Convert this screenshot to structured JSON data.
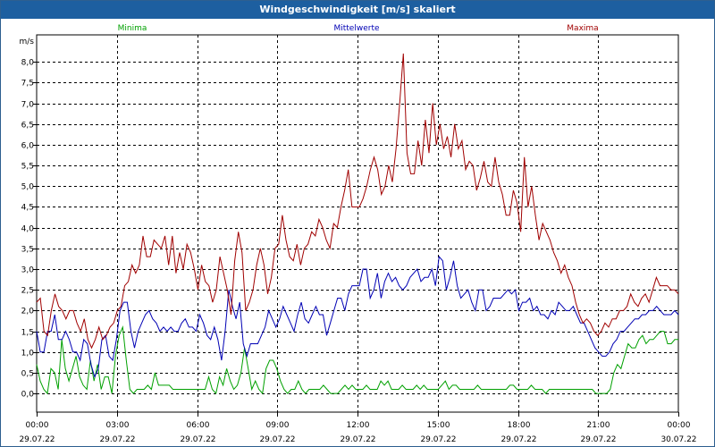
{
  "window": {
    "title": "Windgeschwindigkeit [m/s] skaliert"
  },
  "legend": [
    {
      "label": "Minima",
      "color": "#00a000"
    },
    {
      "label": "Mittelwerte",
      "color": "#0000b4"
    },
    {
      "label": "Maxima",
      "color": "#a00000"
    }
  ],
  "chart_data": {
    "type": "line",
    "title": "Windgeschwindigkeit [m/s] skaliert",
    "ylabel": "m/s",
    "xlabel": "",
    "ylim": [
      -0.45,
      8.65
    ],
    "yticks": [
      "0,0",
      "0,5",
      "1,0",
      "1,5",
      "2,0",
      "2,5",
      "3,0",
      "3,5",
      "4,0",
      "4,5",
      "5,0",
      "5,5",
      "6,0",
      "6,5",
      "7,0",
      "7,5",
      "8,0"
    ],
    "xticks": [
      {
        "time": "00:00",
        "date": "29.07.22"
      },
      {
        "time": "03:00",
        "date": "29.07.22"
      },
      {
        "time": "06:00",
        "date": "29.07.22"
      },
      {
        "time": "09:00",
        "date": "29.07.22"
      },
      {
        "time": "12:00",
        "date": "29.07.22"
      },
      {
        "time": "15:00",
        "date": "29.07.22"
      },
      {
        "time": "18:00",
        "date": "29.07.22"
      },
      {
        "time": "21:00",
        "date": "29.07.22"
      },
      {
        "time": "00:00",
        "date": "30.07.22"
      }
    ],
    "grid": true,
    "x_start": "29.07.22 00:00",
    "x_end": "30.07.22 00:00",
    "series": [
      {
        "name": "Minima",
        "color": "#00a000",
        "values": [
          0.7,
          0.3,
          0.1,
          0.0,
          0.6,
          0.5,
          0.1,
          1.3,
          0.6,
          0.3,
          0.6,
          0.9,
          0.4,
          0.2,
          0.1,
          0.8,
          0.3,
          0.7,
          0.1,
          0.4,
          0.4,
          0.0,
          0.9,
          1.4,
          1.6,
          0.8,
          0.1,
          0.0,
          0.1,
          0.1,
          0.1,
          0.2,
          0.1,
          0.5,
          0.2,
          0.2,
          0.2,
          0.2,
          0.1,
          0.1,
          0.1,
          0.1,
          0.1,
          0.1,
          0.1,
          0.1,
          0.1,
          0.1,
          0.4,
          0.1,
          0.0,
          0.4,
          0.2,
          0.6,
          0.3,
          0.1,
          0.2,
          0.5,
          1.1,
          0.6,
          0.1,
          0.3,
          0.1,
          0.0,
          0.6,
          0.8,
          0.8,
          0.6,
          0.3,
          0.1,
          0.0,
          0.1,
          0.1,
          0.3,
          0.1,
          0.0,
          0.1,
          0.1,
          0.1,
          0.1,
          0.2,
          0.1,
          0.0,
          0.0,
          0.0,
          0.1,
          0.2,
          0.1,
          0.2,
          0.1,
          0.1,
          0.1,
          0.2,
          0.1,
          0.1,
          0.1,
          0.3,
          0.2,
          0.3,
          0.1,
          0.1,
          0.1,
          0.2,
          0.1,
          0.1,
          0.1,
          0.2,
          0.1,
          0.2,
          0.1,
          0.1,
          0.1,
          0.1,
          0.2,
          0.3,
          0.1,
          0.2,
          0.2,
          0.1,
          0.1,
          0.1,
          0.1,
          0.1,
          0.2,
          0.1,
          0.1,
          0.1,
          0.1,
          0.1,
          0.1,
          0.1,
          0.1,
          0.2,
          0.2,
          0.1,
          0.1,
          0.1,
          0.1,
          0.2,
          0.1,
          0.1,
          0.1,
          0.0,
          0.1,
          0.1,
          0.1,
          0.1,
          0.1,
          0.1,
          0.1,
          0.1,
          0.1,
          0.1,
          0.1,
          0.1,
          0.1,
          0.0,
          0.0,
          0.0,
          0.0,
          0.1,
          0.5,
          0.7,
          0.6,
          0.9,
          1.2,
          1.1,
          1.1,
          1.3,
          1.4,
          1.2,
          1.3,
          1.3,
          1.4,
          1.5,
          1.5,
          1.2,
          1.2,
          1.3,
          1.3
        ]
      },
      {
        "name": "Mittelwerte",
        "color": "#0000b4",
        "values": [
          1.5,
          1.0,
          1.0,
          1.5,
          1.5,
          1.9,
          1.3,
          1.3,
          1.5,
          1.3,
          1.0,
          1.0,
          0.8,
          1.3,
          1.2,
          0.7,
          0.4,
          0.6,
          1.3,
          1.4,
          0.9,
          0.8,
          1.3,
          2.0,
          2.2,
          2.2,
          1.5,
          1.1,
          1.5,
          1.7,
          1.9,
          2.0,
          1.8,
          1.7,
          1.5,
          1.6,
          1.5,
          1.6,
          1.5,
          1.5,
          1.7,
          1.8,
          1.6,
          1.6,
          1.5,
          1.9,
          1.7,
          1.4,
          1.3,
          1.6,
          1.3,
          0.8,
          1.5,
          2.5,
          2.1,
          1.8,
          2.2,
          1.2,
          0.9,
          1.2,
          1.2,
          1.2,
          1.4,
          1.6,
          2.0,
          1.8,
          1.6,
          1.8,
          2.1,
          1.9,
          1.7,
          1.5,
          1.9,
          2.2,
          1.8,
          1.7,
          1.9,
          2.1,
          1.9,
          1.9,
          1.4,
          1.7,
          2.0,
          2.3,
          2.3,
          2.0,
          2.4,
          2.6,
          2.6,
          2.6,
          3.0,
          3.0,
          2.3,
          2.5,
          2.9,
          2.3,
          2.7,
          2.9,
          2.7,
          2.8,
          2.6,
          2.5,
          2.6,
          2.8,
          2.9,
          3.0,
          2.7,
          2.8,
          2.8,
          3.0,
          2.6,
          3.3,
          3.2,
          2.5,
          2.8,
          3.2,
          2.6,
          2.3,
          2.4,
          2.5,
          2.2,
          2.0,
          2.5,
          2.5,
          2.0,
          2.1,
          2.3,
          2.3,
          2.3,
          2.4,
          2.5,
          2.4,
          2.5,
          2.0,
          2.2,
          2.2,
          2.3,
          2.0,
          2.1,
          1.9,
          1.9,
          1.8,
          2.0,
          1.9,
          2.2,
          2.1,
          2.0,
          2.0,
          2.1,
          1.9,
          1.7,
          1.7,
          1.5,
          1.3,
          1.1,
          1.0,
          0.9,
          0.9,
          1.0,
          1.2,
          1.3,
          1.5,
          1.5,
          1.6,
          1.7,
          1.8,
          1.8,
          1.9,
          1.9,
          2.0,
          2.0,
          2.1,
          2.0,
          1.9,
          1.9,
          1.9,
          2.0,
          1.9
        ]
      },
      {
        "name": "Maxima",
        "color": "#a00000",
        "values": [
          2.2,
          2.3,
          1.5,
          1.4,
          2.0,
          2.4,
          2.1,
          2.0,
          1.8,
          2.0,
          2.0,
          1.7,
          1.5,
          1.8,
          1.3,
          1.1,
          1.3,
          1.6,
          1.3,
          1.4,
          1.6,
          1.7,
          2.0,
          2.1,
          2.6,
          2.7,
          3.1,
          2.9,
          3.1,
          3.8,
          3.3,
          3.3,
          3.7,
          3.6,
          3.5,
          3.8,
          3.1,
          3.8,
          2.9,
          3.4,
          3.0,
          3.6,
          3.4,
          3.0,
          2.5,
          3.1,
          2.7,
          2.6,
          2.2,
          2.5,
          3.3,
          2.9,
          2.5,
          1.9,
          3.2,
          3.9,
          3.4,
          2.0,
          2.2,
          2.5,
          3.1,
          3.5,
          3.1,
          2.4,
          2.8,
          3.5,
          3.6,
          4.3,
          3.7,
          3.3,
          3.2,
          3.6,
          3.1,
          3.5,
          3.6,
          3.9,
          3.8,
          4.2,
          4.0,
          3.7,
          3.5,
          4.1,
          4.0,
          4.5,
          4.9,
          5.4,
          4.5,
          4.5,
          4.5,
          4.7,
          5.0,
          5.4,
          5.7,
          5.4,
          4.8,
          5.0,
          5.5,
          5.1,
          5.9,
          7.0,
          8.2,
          5.8,
          5.3,
          5.3,
          6.1,
          5.5,
          6.6,
          5.8,
          7.0,
          6.0,
          6.5,
          5.9,
          6.2,
          5.7,
          6.5,
          5.9,
          6.1,
          5.4,
          5.6,
          5.5,
          4.9,
          5.2,
          5.6,
          5.1,
          5.0,
          5.7,
          5.1,
          4.8,
          4.3,
          4.3,
          4.9,
          4.6,
          3.9,
          5.7,
          4.5,
          5.0,
          4.3,
          3.7,
          4.1,
          3.9,
          3.7,
          3.4,
          3.2,
          2.9,
          3.1,
          2.8,
          2.6,
          2.2,
          1.9,
          1.7,
          1.8,
          1.7,
          1.5,
          1.4,
          1.5,
          1.7,
          1.6,
          1.8,
          1.8,
          2.0,
          2.0,
          2.1,
          2.4,
          2.2,
          2.1,
          2.3,
          2.4,
          2.2,
          2.5,
          2.8,
          2.6,
          2.6,
          2.6,
          2.5,
          2.5,
          2.4
        ]
      }
    ]
  }
}
